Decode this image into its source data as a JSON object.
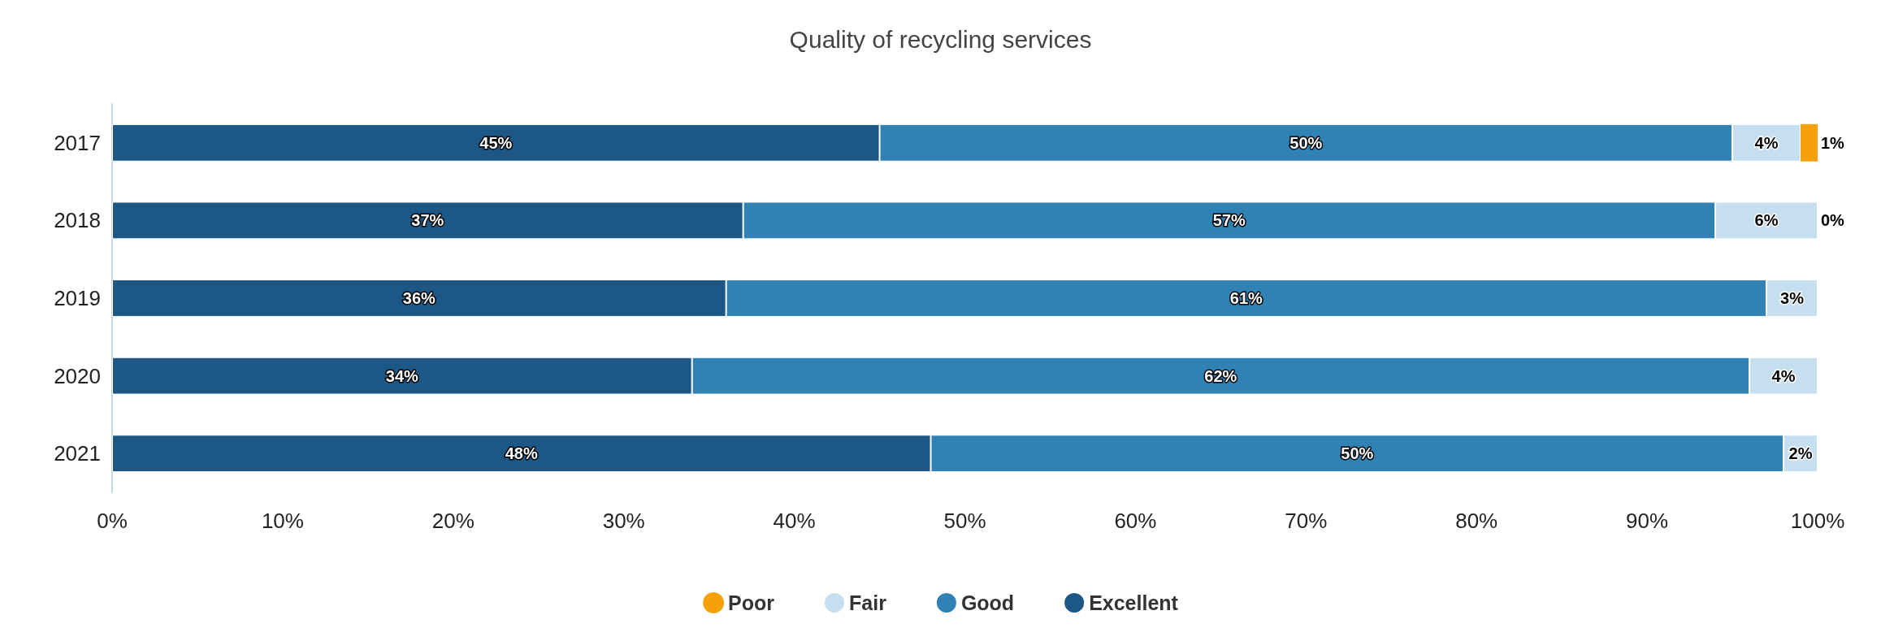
{
  "chart_data": {
    "type": "bar",
    "orientation": "horizontal",
    "stacked": true,
    "title": "Quality of recycling services",
    "categories": [
      "2017",
      "2018",
      "2019",
      "2020",
      "2021"
    ],
    "series": [
      {
        "name": "Excellent",
        "color": "#1c5785",
        "values": [
          45,
          37,
          36,
          34,
          48
        ],
        "value_labels": [
          "45%",
          "37%",
          "36%",
          "34%",
          "48%"
        ]
      },
      {
        "name": "Good",
        "color": "#3082b5",
        "values": [
          50,
          57,
          61,
          62,
          50
        ],
        "value_labels": [
          "50%",
          "57%",
          "61%",
          "62%",
          "50%"
        ]
      },
      {
        "name": "Fair",
        "color": "#c6dff0",
        "values": [
          4,
          6,
          3,
          4,
          2
        ],
        "value_labels": [
          "4%",
          "6%",
          "3%",
          "4%",
          "2%"
        ]
      },
      {
        "name": "Poor",
        "color": "#f5a20a",
        "values": [
          1,
          0,
          null,
          null,
          null
        ],
        "value_labels": [
          "1%",
          "0%",
          null,
          null,
          null
        ]
      }
    ],
    "xlim": [
      0,
      100
    ],
    "xticks": [
      {
        "value": 0,
        "label": "0%"
      },
      {
        "value": 10,
        "label": "10%"
      },
      {
        "value": 20,
        "label": "20%"
      },
      {
        "value": 30,
        "label": "30%"
      },
      {
        "value": 40,
        "label": "40%"
      },
      {
        "value": 50,
        "label": "50%"
      },
      {
        "value": 60,
        "label": "60%"
      },
      {
        "value": 70,
        "label": "70%"
      },
      {
        "value": 80,
        "label": "80%"
      },
      {
        "value": 90,
        "label": "90%"
      },
      {
        "value": 100,
        "label": "100%"
      }
    ],
    "legend": "bottom",
    "grid": false
  }
}
